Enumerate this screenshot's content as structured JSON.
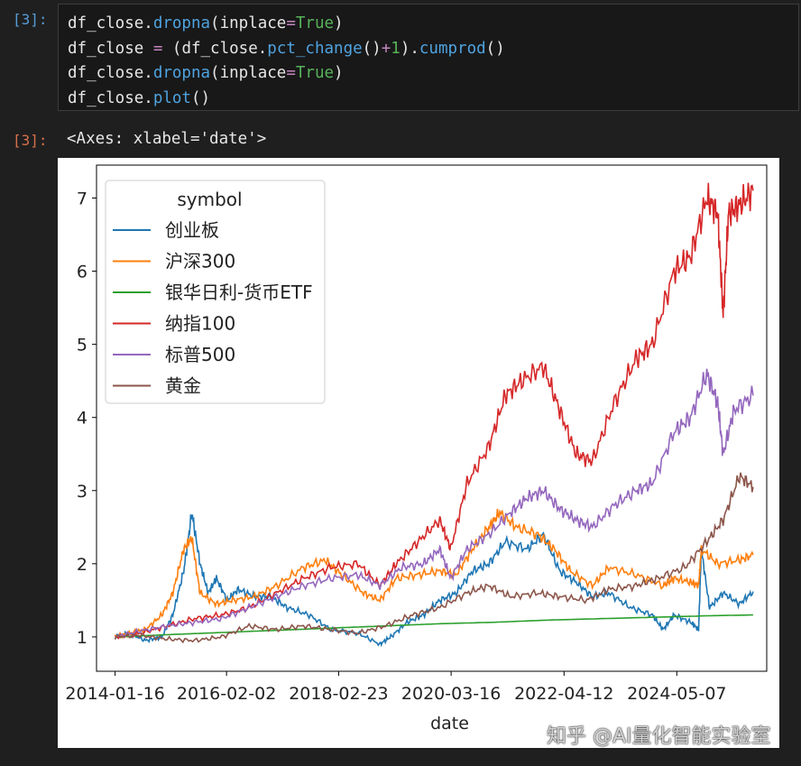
{
  "input_cell": {
    "prompt": "[3]:",
    "lines": [
      [
        {
          "t": "df_close."
        },
        {
          "t": "dropna",
          "c": "fn"
        },
        {
          "t": "(inplace"
        },
        {
          "t": "=",
          "c": "op"
        },
        {
          "t": "True",
          "c": "kw"
        },
        {
          "t": ")"
        }
      ],
      [
        {
          "t": "df_close "
        },
        {
          "t": "=",
          "c": "op"
        },
        {
          "t": " (df_close."
        },
        {
          "t": "pct_change",
          "c": "fn"
        },
        {
          "t": "()"
        },
        {
          "t": "+",
          "c": "op"
        },
        {
          "t": "1",
          "c": "num"
        },
        {
          "t": ")."
        },
        {
          "t": "cumprod",
          "c": "fn"
        },
        {
          "t": "()"
        }
      ],
      [
        {
          "t": "df_close."
        },
        {
          "t": "dropna",
          "c": "fn"
        },
        {
          "t": "(inplace"
        },
        {
          "t": "=",
          "c": "op"
        },
        {
          "t": "True",
          "c": "kw"
        },
        {
          "t": ")"
        }
      ],
      [
        {
          "t": "df_close."
        },
        {
          "t": "plot",
          "c": "fn"
        },
        {
          "t": "()"
        }
      ]
    ]
  },
  "output_cell": {
    "prompt": "[3]:",
    "text": "<Axes: xlabel='date'>"
  },
  "watermark": "知乎 @AI量化智能实验室",
  "chart_data": {
    "type": "line",
    "xlabel": "date",
    "ylabel": "",
    "x_ticks": [
      "2014-01-16",
      "2016-02-02",
      "2018-02-23",
      "2020-03-16",
      "2022-04-12",
      "2024-05-07"
    ],
    "y_ticks": [
      1,
      2,
      3,
      4,
      5,
      6,
      7
    ],
    "xlim": [
      2013.7,
      2026.0
    ],
    "ylim": [
      0.53,
      7.45
    ],
    "grid": false,
    "legend": {
      "title": "symbol",
      "position": "top-left"
    },
    "series": [
      {
        "name": "创业板",
        "color": "#1f77b4",
        "x": [
          2014.04,
          2014.3,
          2014.6,
          2014.9,
          2015.1,
          2015.3,
          2015.45,
          2015.6,
          2015.75,
          2015.9,
          2016.1,
          2016.3,
          2016.6,
          2016.9,
          2017.2,
          2017.6,
          2018.0,
          2018.5,
          2018.9,
          2019.1,
          2019.4,
          2019.7,
          2020.0,
          2020.3,
          2020.6,
          2020.9,
          2021.2,
          2021.6,
          2021.9,
          2022.2,
          2022.5,
          2022.8,
          2023.1,
          2023.5,
          2023.9,
          2024.1,
          2024.3,
          2024.6,
          2024.75,
          2024.8,
          2024.95,
          2025.2,
          2025.5,
          2025.75
        ],
        "y": [
          1.0,
          1.05,
          0.95,
          1.0,
          1.3,
          1.9,
          2.7,
          2.0,
          1.6,
          1.8,
          1.5,
          1.65,
          1.55,
          1.55,
          1.4,
          1.3,
          1.1,
          1.05,
          0.9,
          1.0,
          1.2,
          1.3,
          1.5,
          1.6,
          1.9,
          2.0,
          2.3,
          2.2,
          2.4,
          1.9,
          1.75,
          1.55,
          1.6,
          1.4,
          1.3,
          1.1,
          1.3,
          1.2,
          1.1,
          2.2,
          1.4,
          1.6,
          1.45,
          1.62
        ]
      },
      {
        "name": "沪深300",
        "color": "#ff7f0e",
        "x": [
          2014.04,
          2014.3,
          2014.6,
          2014.9,
          2015.1,
          2015.3,
          2015.45,
          2015.6,
          2015.9,
          2016.2,
          2016.6,
          2017.0,
          2017.5,
          2017.9,
          2018.2,
          2018.6,
          2018.9,
          2019.2,
          2019.6,
          2020.0,
          2020.3,
          2020.6,
          2020.9,
          2021.1,
          2021.4,
          2021.8,
          2022.1,
          2022.4,
          2022.8,
          2023.1,
          2023.6,
          2024.1,
          2024.3,
          2024.6,
          2024.75,
          2024.8,
          2025.1,
          2025.5,
          2025.75
        ],
        "y": [
          1.0,
          1.05,
          1.1,
          1.3,
          1.6,
          2.2,
          2.35,
          1.6,
          1.45,
          1.5,
          1.55,
          1.7,
          1.95,
          2.05,
          1.85,
          1.6,
          1.5,
          1.8,
          1.85,
          1.9,
          1.85,
          2.2,
          2.5,
          2.7,
          2.5,
          2.4,
          2.2,
          1.9,
          1.7,
          1.95,
          1.85,
          1.7,
          1.8,
          1.75,
          1.7,
          2.2,
          2.0,
          2.05,
          2.12
        ]
      },
      {
        "name": "银华日利-货币ETF",
        "color": "#2ca02c",
        "x": [
          2014.04,
          2015.0,
          2016.0,
          2017.0,
          2018.0,
          2019.0,
          2020.0,
          2021.0,
          2022.0,
          2023.0,
          2024.0,
          2025.0,
          2025.75
        ],
        "y": [
          1.0,
          1.03,
          1.06,
          1.09,
          1.12,
          1.15,
          1.18,
          1.2,
          1.23,
          1.25,
          1.27,
          1.29,
          1.3
        ]
      },
      {
        "name": "纳指100",
        "color": "#d62728",
        "x": [
          2014.04,
          2014.5,
          2015.0,
          2015.5,
          2016.0,
          2016.5,
          2017.0,
          2017.5,
          2018.0,
          2018.5,
          2018.9,
          2019.2,
          2019.6,
          2020.0,
          2020.2,
          2020.5,
          2020.9,
          2021.2,
          2021.5,
          2021.9,
          2022.2,
          2022.5,
          2022.8,
          2023.2,
          2023.6,
          2023.9,
          2024.3,
          2024.6,
          2024.9,
          2025.1,
          2025.2,
          2025.3,
          2025.5,
          2025.75
        ],
        "y": [
          1.0,
          1.05,
          1.15,
          1.25,
          1.3,
          1.4,
          1.6,
          1.8,
          1.95,
          2.0,
          1.7,
          2.0,
          2.3,
          2.6,
          2.2,
          3.1,
          3.6,
          4.3,
          4.5,
          4.7,
          4.1,
          3.5,
          3.4,
          4.2,
          4.8,
          5.0,
          6.0,
          6.2,
          7.0,
          6.8,
          5.4,
          6.8,
          6.9,
          7.1
        ]
      },
      {
        "name": "标普500",
        "color": "#9467bd",
        "x": [
          2014.04,
          2014.5,
          2015.0,
          2015.5,
          2016.0,
          2016.5,
          2017.0,
          2017.5,
          2018.0,
          2018.5,
          2018.9,
          2019.3,
          2019.7,
          2020.0,
          2020.2,
          2020.5,
          2020.9,
          2021.3,
          2021.6,
          2021.9,
          2022.2,
          2022.5,
          2022.8,
          2023.2,
          2023.6,
          2023.9,
          2024.3,
          2024.6,
          2024.9,
          2025.1,
          2025.2,
          2025.4,
          2025.75
        ],
        "y": [
          1.0,
          1.08,
          1.15,
          1.2,
          1.25,
          1.4,
          1.55,
          1.7,
          1.8,
          1.85,
          1.7,
          1.95,
          2.0,
          2.2,
          1.8,
          2.2,
          2.4,
          2.7,
          2.9,
          3.0,
          2.75,
          2.6,
          2.5,
          2.8,
          3.0,
          3.1,
          3.8,
          4.0,
          4.6,
          4.2,
          3.5,
          4.1,
          4.3
        ]
      },
      {
        "name": "黄金",
        "color": "#8c564b",
        "x": [
          2014.04,
          2014.5,
          2015.0,
          2015.5,
          2016.0,
          2016.5,
          2017.0,
          2017.5,
          2018.0,
          2018.5,
          2019.0,
          2019.5,
          2020.0,
          2020.5,
          2020.9,
          2021.3,
          2021.8,
          2022.2,
          2022.7,
          2023.1,
          2023.6,
          2024.0,
          2024.5,
          2024.9,
          2025.2,
          2025.5,
          2025.75
        ],
        "y": [
          1.0,
          1.02,
          0.97,
          0.95,
          1.0,
          1.15,
          1.1,
          1.15,
          1.1,
          1.05,
          1.15,
          1.3,
          1.4,
          1.6,
          1.7,
          1.55,
          1.6,
          1.55,
          1.5,
          1.65,
          1.7,
          1.8,
          1.95,
          2.3,
          2.6,
          3.2,
          3.05
        ]
      }
    ]
  }
}
